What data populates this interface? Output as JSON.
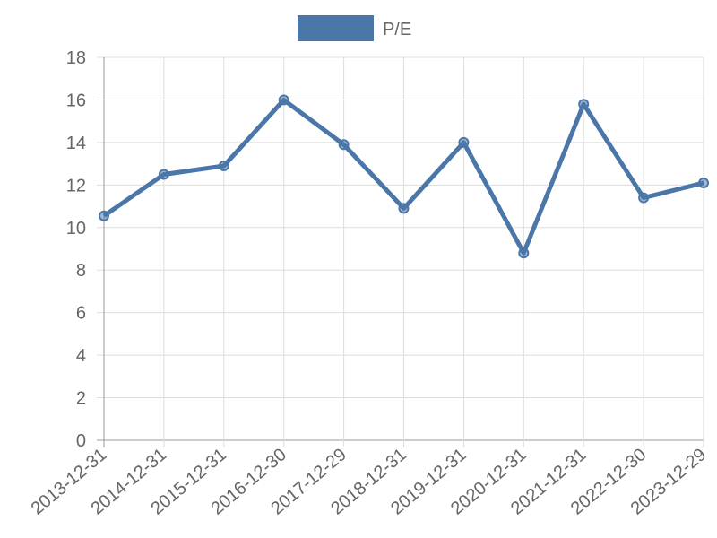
{
  "chart_data": {
    "type": "line",
    "categories": [
      "2013-12-31",
      "2014-12-31",
      "2015-12-31",
      "2016-12-30",
      "2017-12-29",
      "2018-12-31",
      "2019-12-31",
      "2020-12-31",
      "2021-12-31",
      "2022-12-30",
      "2023-12-29"
    ],
    "series": [
      {
        "name": "P/E",
        "color": "#4a76a8",
        "values": [
          10.55,
          12.5,
          12.9,
          16.0,
          13.9,
          10.9,
          14.0,
          8.8,
          15.8,
          11.4,
          12.1
        ]
      }
    ],
    "ylim": [
      0,
      18
    ],
    "yticks": [
      0,
      2,
      4,
      6,
      8,
      10,
      12,
      14,
      16,
      18
    ],
    "grid": true,
    "legend": "top"
  }
}
